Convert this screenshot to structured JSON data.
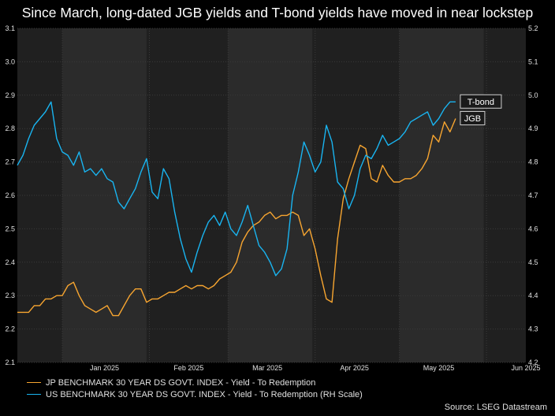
{
  "title": "Since March, long-dated JGB yields and T-bond yields have moved in near lockstep",
  "source": "Source: LSEG Datastream",
  "chart_data": {
    "type": "line",
    "x_start": "2024-12-16",
    "x_end": "2025-06-15",
    "x_tick_labels": [
      {
        "label": "Jan 2025",
        "date": "2025-01-16"
      },
      {
        "label": "Feb 2025",
        "date": "2025-02-15"
      },
      {
        "label": "Mar 2025",
        "date": "2025-03-15"
      },
      {
        "label": "Apr 2025",
        "date": "2025-04-15"
      },
      {
        "label": "May 2025",
        "date": "2025-05-15"
      },
      {
        "label": "Jun 2025",
        "date": "2025-06-15"
      }
    ],
    "shaded_months": [
      [
        "2025-01-01",
        "2025-01-31"
      ],
      [
        "2025-03-01",
        "2025-03-31"
      ],
      [
        "2025-05-01",
        "2025-05-31"
      ]
    ],
    "y_left": {
      "min": 2.1,
      "max": 3.1,
      "ticks": [
        "2.1",
        "2.2",
        "2.3",
        "2.4",
        "2.5",
        "2.6",
        "2.7",
        "2.8",
        "2.9",
        "3.0",
        "3.1"
      ]
    },
    "y_right": {
      "min": 4.2,
      "max": 5.2,
      "ticks": [
        "4.2",
        "4.3",
        "4.4",
        "4.5",
        "4.6",
        "4.7",
        "4.8",
        "4.9",
        "5.0",
        "5.1",
        "5.2"
      ]
    },
    "grid": true,
    "series": [
      {
        "name": "JP BENCHMARK 30 YEAR DS GOVT. INDEX - Yield - To Redemption",
        "color": "#f7a530",
        "axis": "left",
        "annotation": "JGB",
        "x": [
          "2024-12-16",
          "2024-12-18",
          "2024-12-20",
          "2024-12-22",
          "2024-12-24",
          "2024-12-26",
          "2024-12-28",
          "2024-12-30",
          "2025-01-01",
          "2025-01-03",
          "2025-01-05",
          "2025-01-07",
          "2025-01-09",
          "2025-01-11",
          "2025-01-13",
          "2025-01-15",
          "2025-01-17",
          "2025-01-19",
          "2025-01-21",
          "2025-01-23",
          "2025-01-25",
          "2025-01-27",
          "2025-01-29",
          "2025-01-31",
          "2025-02-02",
          "2025-02-04",
          "2025-02-06",
          "2025-02-08",
          "2025-02-10",
          "2025-02-12",
          "2025-02-14",
          "2025-02-16",
          "2025-02-18",
          "2025-02-20",
          "2025-02-22",
          "2025-02-24",
          "2025-02-26",
          "2025-02-28",
          "2025-03-02",
          "2025-03-04",
          "2025-03-06",
          "2025-03-08",
          "2025-03-10",
          "2025-03-12",
          "2025-03-14",
          "2025-03-16",
          "2025-03-18",
          "2025-03-20",
          "2025-03-22",
          "2025-03-24",
          "2025-03-26",
          "2025-03-28",
          "2025-03-30",
          "2025-04-01",
          "2025-04-03",
          "2025-04-05",
          "2025-04-07",
          "2025-04-09",
          "2025-04-11",
          "2025-04-13",
          "2025-04-15",
          "2025-04-17",
          "2025-04-19",
          "2025-04-21",
          "2025-04-23",
          "2025-04-25",
          "2025-04-27",
          "2025-04-29",
          "2025-05-01",
          "2025-05-03",
          "2025-05-05",
          "2025-05-07",
          "2025-05-09",
          "2025-05-11",
          "2025-05-13",
          "2025-05-15",
          "2025-05-17",
          "2025-05-19",
          "2025-05-21"
        ],
        "values": [
          2.25,
          2.25,
          2.25,
          2.27,
          2.27,
          2.29,
          2.29,
          2.3,
          2.3,
          2.33,
          2.34,
          2.3,
          2.27,
          2.26,
          2.25,
          2.26,
          2.27,
          2.24,
          2.24,
          2.27,
          2.3,
          2.32,
          2.32,
          2.28,
          2.29,
          2.29,
          2.3,
          2.31,
          2.31,
          2.32,
          2.33,
          2.32,
          2.33,
          2.33,
          2.32,
          2.33,
          2.35,
          2.36,
          2.37,
          2.4,
          2.46,
          2.49,
          2.51,
          2.52,
          2.54,
          2.55,
          2.53,
          2.54,
          2.54,
          2.55,
          2.54,
          2.48,
          2.5,
          2.44,
          2.36,
          2.29,
          2.28,
          2.47,
          2.59,
          2.65,
          2.7,
          2.75,
          2.74,
          2.65,
          2.64,
          2.69,
          2.66,
          2.64,
          2.64,
          2.65,
          2.65,
          2.66,
          2.68,
          2.71,
          2.78,
          2.76,
          2.82,
          2.79,
          2.83
        ]
      },
      {
        "name": "US BENCHMARK 30 YEAR DS GOVT. INDEX - Yield - To Redemption (RH Scale)",
        "color": "#19b4f0",
        "axis": "right",
        "annotation": "T-bond",
        "x": [
          "2024-12-16",
          "2024-12-18",
          "2024-12-20",
          "2024-12-22",
          "2024-12-24",
          "2024-12-26",
          "2024-12-28",
          "2024-12-30",
          "2025-01-01",
          "2025-01-03",
          "2025-01-05",
          "2025-01-07",
          "2025-01-09",
          "2025-01-11",
          "2025-01-13",
          "2025-01-15",
          "2025-01-17",
          "2025-01-19",
          "2025-01-21",
          "2025-01-23",
          "2025-01-25",
          "2025-01-27",
          "2025-01-29",
          "2025-01-31",
          "2025-02-02",
          "2025-02-04",
          "2025-02-06",
          "2025-02-08",
          "2025-02-10",
          "2025-02-12",
          "2025-02-14",
          "2025-02-16",
          "2025-02-18",
          "2025-02-20",
          "2025-02-22",
          "2025-02-24",
          "2025-02-26",
          "2025-02-28",
          "2025-03-02",
          "2025-03-04",
          "2025-03-06",
          "2025-03-08",
          "2025-03-10",
          "2025-03-12",
          "2025-03-14",
          "2025-03-16",
          "2025-03-18",
          "2025-03-20",
          "2025-03-22",
          "2025-03-24",
          "2025-03-26",
          "2025-03-28",
          "2025-03-30",
          "2025-04-01",
          "2025-04-03",
          "2025-04-05",
          "2025-04-07",
          "2025-04-09",
          "2025-04-11",
          "2025-04-13",
          "2025-04-15",
          "2025-04-17",
          "2025-04-19",
          "2025-04-21",
          "2025-04-23",
          "2025-04-25",
          "2025-04-27",
          "2025-04-29",
          "2025-05-01",
          "2025-05-03",
          "2025-05-05",
          "2025-05-07",
          "2025-05-09",
          "2025-05-11",
          "2025-05-13",
          "2025-05-15",
          "2025-05-17",
          "2025-05-19",
          "2025-05-21"
        ],
        "values": [
          4.79,
          4.82,
          4.87,
          4.91,
          4.93,
          4.95,
          4.98,
          4.87,
          4.83,
          4.82,
          4.79,
          4.83,
          4.77,
          4.78,
          4.76,
          4.78,
          4.75,
          4.74,
          4.68,
          4.66,
          4.69,
          4.72,
          4.77,
          4.81,
          4.71,
          4.69,
          4.78,
          4.75,
          4.65,
          4.57,
          4.51,
          4.47,
          4.53,
          4.58,
          4.62,
          4.64,
          4.61,
          4.65,
          4.6,
          4.58,
          4.62,
          4.67,
          4.61,
          4.55,
          4.53,
          4.5,
          4.46,
          4.48,
          4.54,
          4.7,
          4.77,
          4.86,
          4.82,
          4.77,
          4.8,
          4.91,
          4.86,
          4.74,
          4.72,
          4.66,
          4.7,
          4.78,
          4.82,
          4.81,
          4.84,
          4.88,
          4.85,
          4.86,
          4.87,
          4.89,
          4.92,
          4.93,
          4.94,
          4.95,
          4.91,
          4.93,
          4.96,
          4.98,
          4.98
        ]
      }
    ]
  }
}
